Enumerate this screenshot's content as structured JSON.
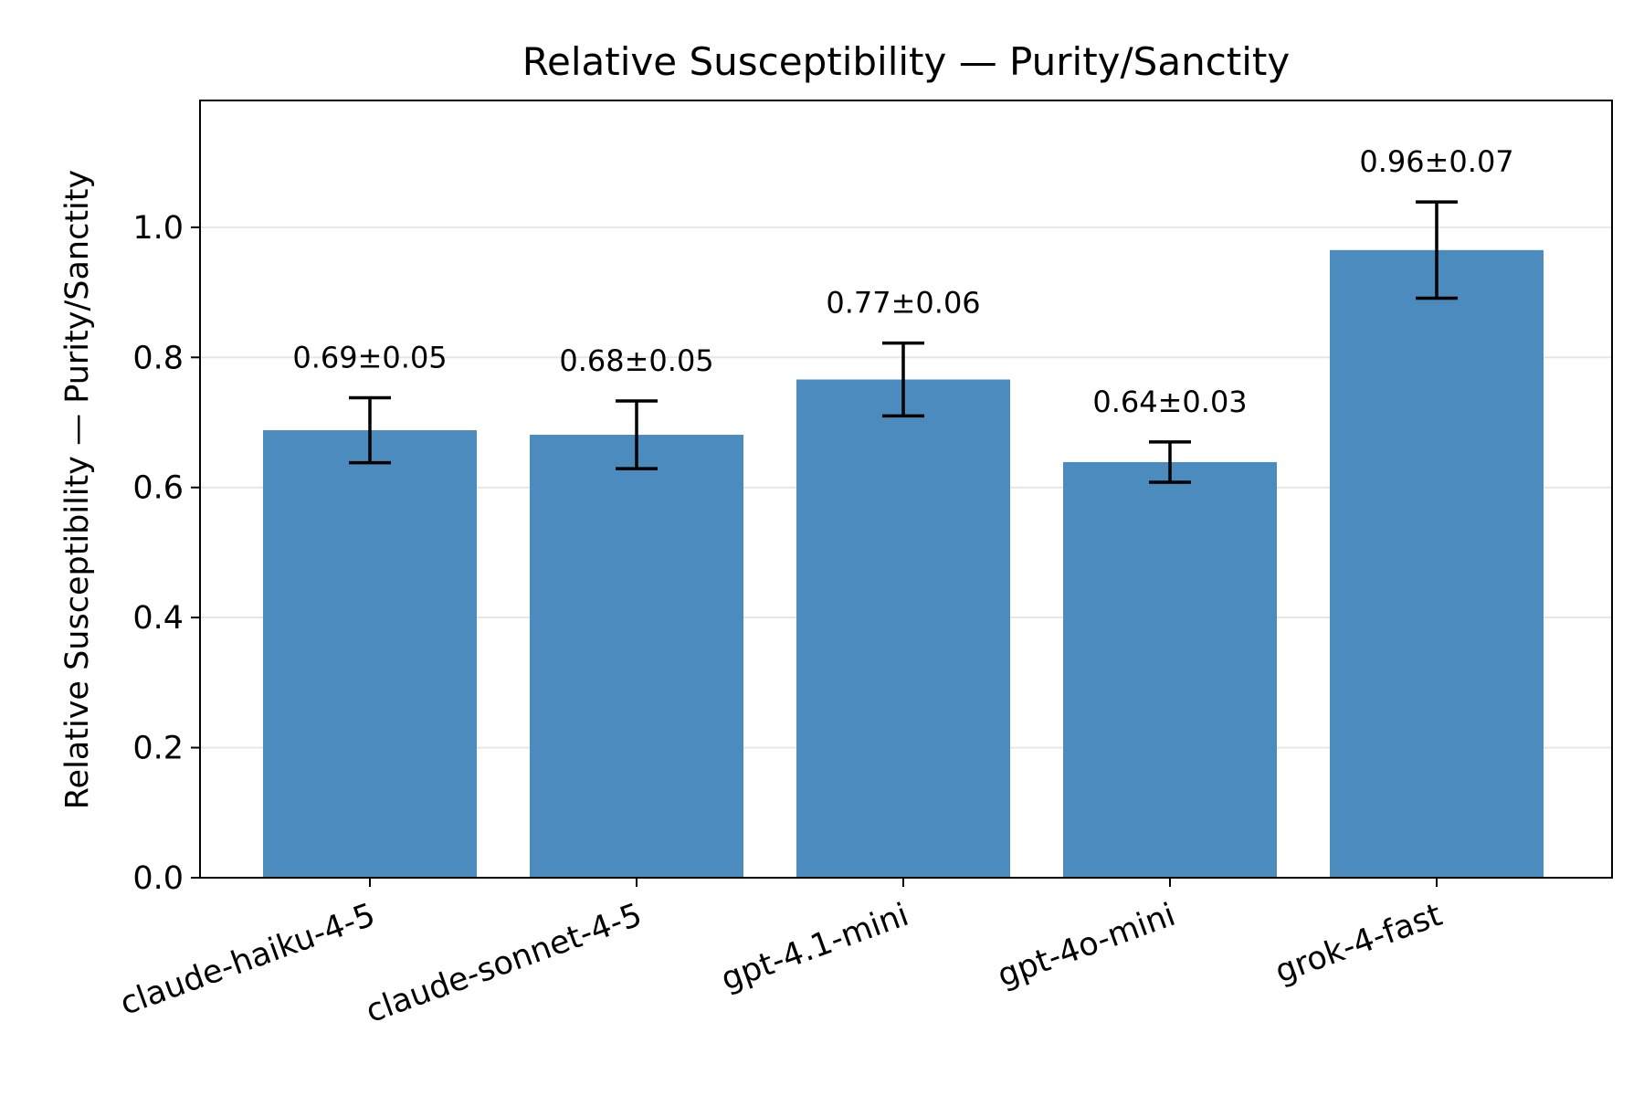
{
  "chart_data": {
    "type": "bar",
    "title": "Relative Susceptibility — Purity/Sanctity",
    "xlabel": "",
    "ylabel": "Relative Susceptibility — Purity/Sanctity",
    "categories": [
      "claude-haiku-4-5",
      "claude-sonnet-4-5",
      "gpt-4.1-mini",
      "gpt-4o-mini",
      "grok-4-fast"
    ],
    "values": [
      0.688,
      0.681,
      0.766,
      0.639,
      0.965
    ],
    "errors": [
      0.05,
      0.052,
      0.056,
      0.031,
      0.074
    ],
    "data_labels": [
      "0.69±0.05",
      "0.68±0.05",
      "0.77±0.06",
      "0.64±0.03",
      "0.96±0.07"
    ],
    "ylim": [
      0,
      1.195
    ],
    "yticks": [
      0.0,
      0.2,
      0.4,
      0.6,
      0.8,
      1.0
    ],
    "ytick_labels": [
      "0.0",
      "0.2",
      "0.4",
      "0.6",
      "0.8",
      "1.0"
    ],
    "grid": "y-major",
    "bar_color": "#4c8bbd",
    "error_color": "#000000",
    "grid_color": "#e6e6e6"
  }
}
